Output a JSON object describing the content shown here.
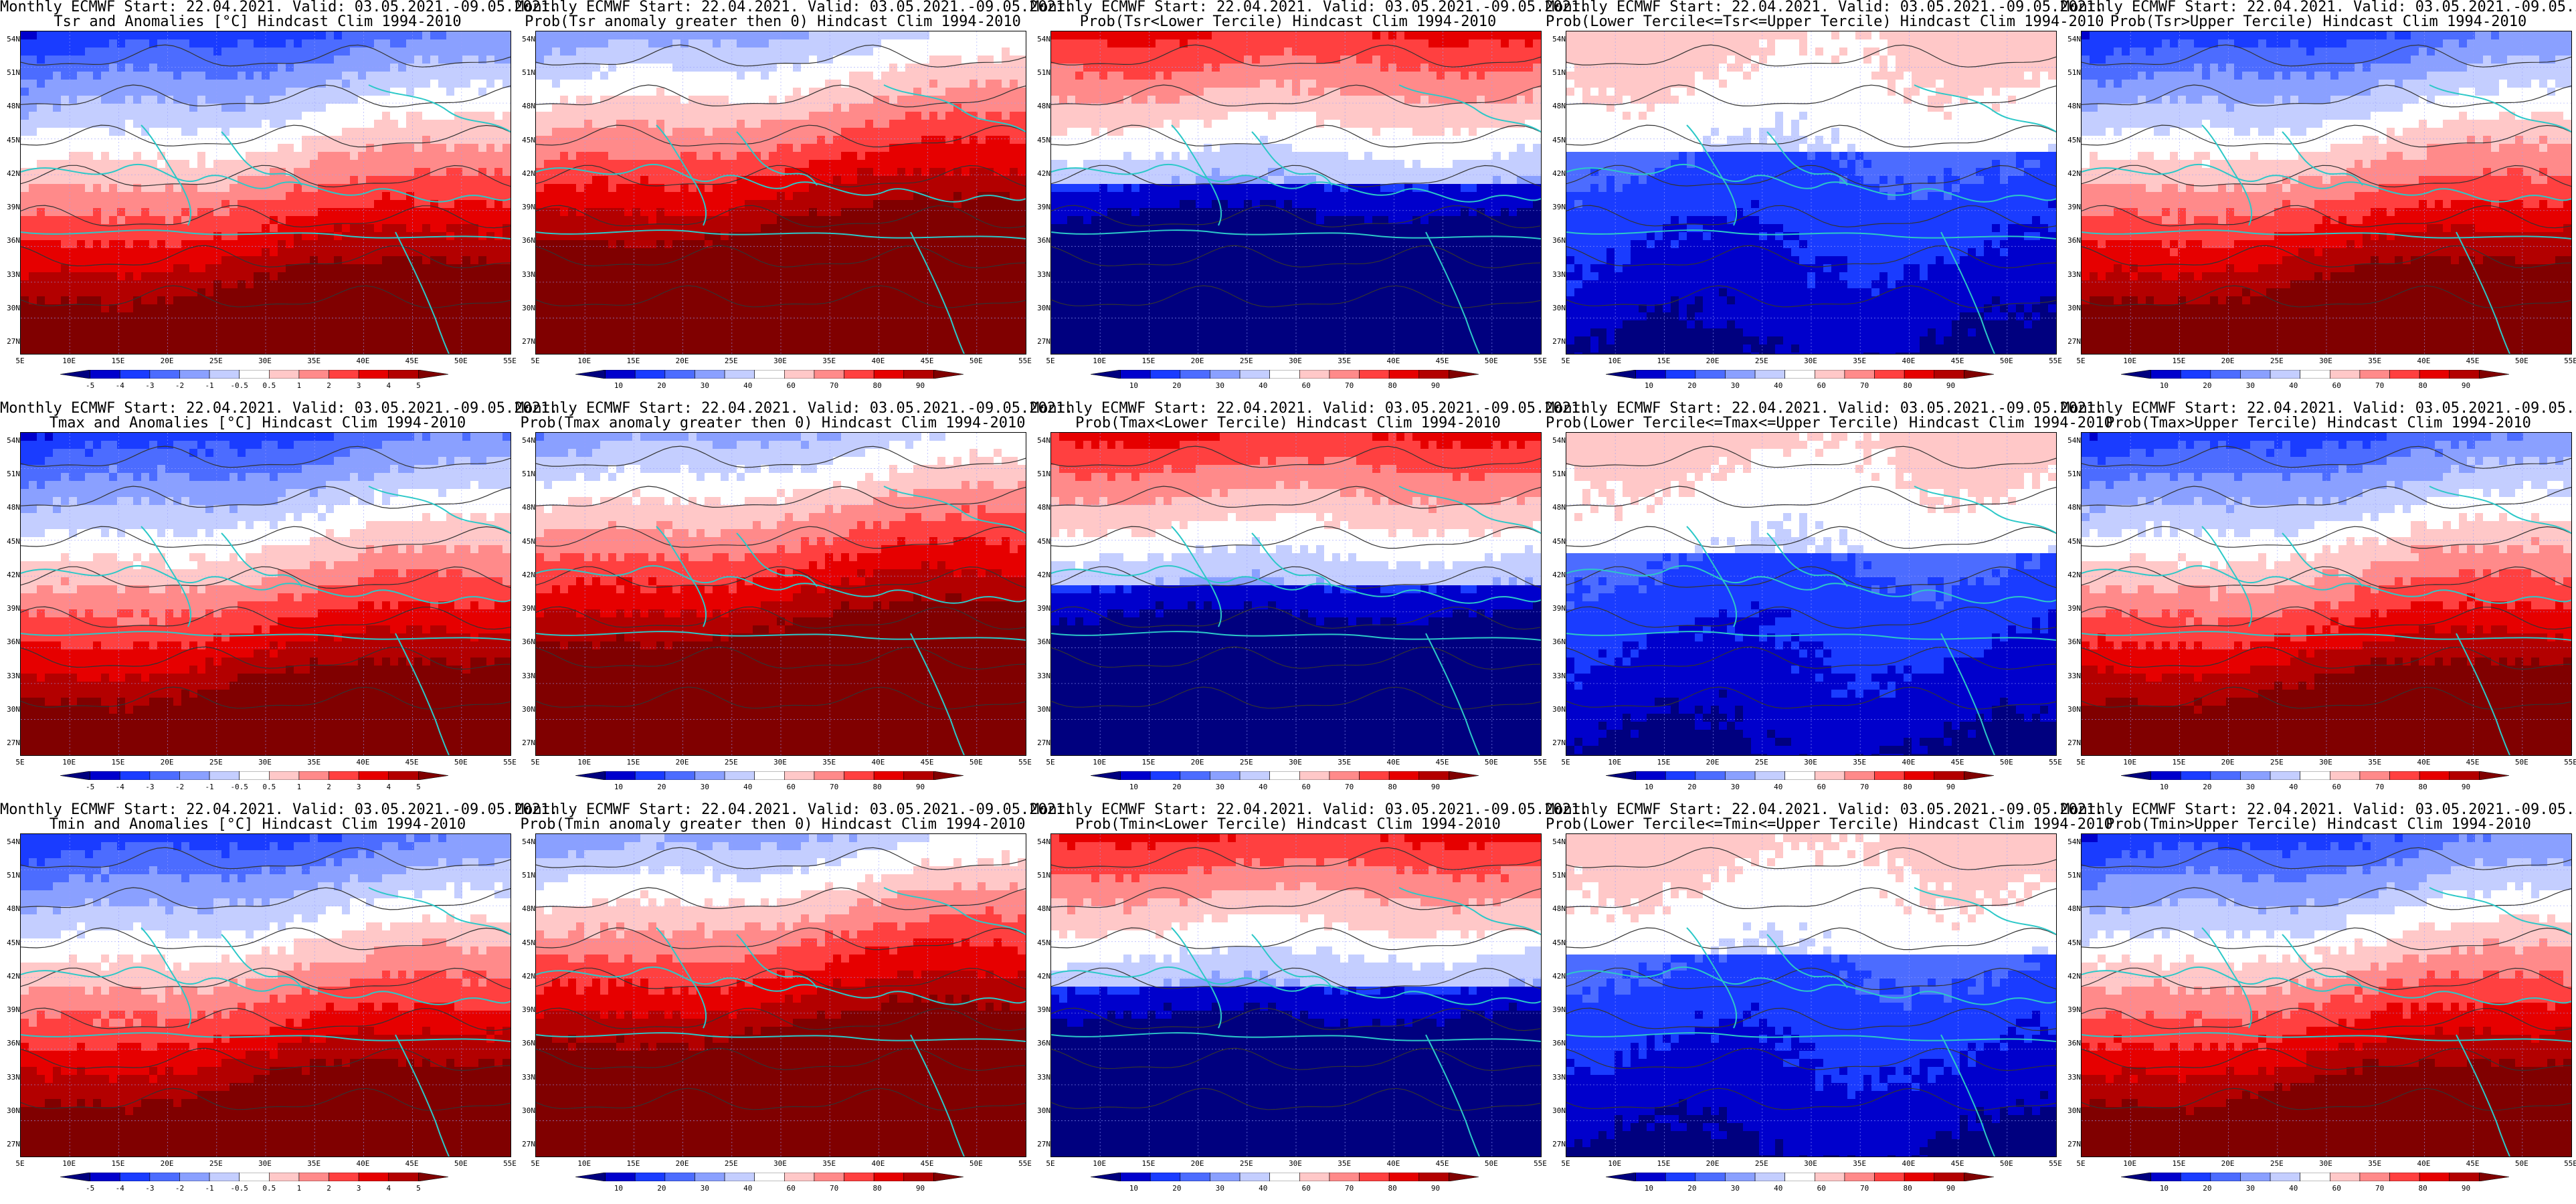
{
  "title_line1": "Monthly ECMWF Start: 22.04.2021. Valid: 03.05.2021.-09.05.2021.",
  "lat_labels": [
    "54N",
    "51N",
    "48N",
    "45N",
    "42N",
    "39N",
    "36N",
    "33N",
    "30N",
    "27N"
  ],
  "lon_labels": [
    "5E",
    "10E",
    "15E",
    "20E",
    "25E",
    "30E",
    "35E",
    "40E",
    "45E",
    "50E",
    "55E"
  ],
  "anomaly_ticks": [
    "-5",
    "-4",
    "-3",
    "-2",
    "-1",
    "-0.5",
    "0.5",
    "1",
    "2",
    "3",
    "4",
    "5"
  ],
  "prob_ticks": [
    "10",
    "20",
    "30",
    "40",
    "60",
    "70",
    "80",
    "90"
  ],
  "colors": {
    "scale": [
      "#00007f",
      "#0000cc",
      "#1a3cff",
      "#4c6cff",
      "#8aa0ff",
      "#c4ceff",
      "#ffffff",
      "#ffc8c8",
      "#ff8a8a",
      "#ff4040",
      "#e60000",
      "#b30000",
      "#800000"
    ],
    "coast": "#2cc8c8",
    "contour": "#333333"
  },
  "rows": [
    {
      "panels": [
        {
          "title2": "Tsr and Anomalies [°C] Hindcast Clim 1994-2010",
          "kind": "anomaly",
          "pattern": "warm-south"
        },
        {
          "title2": "Prob(Tsr anomaly greater then 0) Hindcast Clim 1994-2010",
          "kind": "prob",
          "pattern": "warm-south-strong"
        },
        {
          "title2": "Prob(Tsr<Lower Tercile) Hindcast Clim 1994-2010",
          "kind": "prob",
          "pattern": "cold-south"
        },
        {
          "title2": "Prob(Lower Tercile<=Tsr<=Upper Tercile) Hindcast Clim 1994-2010",
          "kind": "prob",
          "pattern": "mid-blue"
        },
        {
          "title2": "Prob(Tsr>Upper Tercile) Hindcast Clim 1994-2010",
          "kind": "prob",
          "pattern": "warm-south"
        }
      ]
    },
    {
      "panels": [
        {
          "title2": "Tmax and Anomalies [°C] Hindcast Clim 1994-2010",
          "kind": "anomaly",
          "pattern": "warm-south"
        },
        {
          "title2": "Prob(Tmax anomaly greater then 0) Hindcast Clim 1994-2010",
          "kind": "prob",
          "pattern": "warm-south-strong"
        },
        {
          "title2": "Prob(Tmax<Lower Tercile) Hindcast Clim 1994-2010",
          "kind": "prob",
          "pattern": "cold-south"
        },
        {
          "title2": "Prob(Lower Tercile<=Tmax<=Upper Tercile) Hindcast Clim 1994-2010",
          "kind": "prob",
          "pattern": "mid-blue"
        },
        {
          "title2": "Prob(Tmax>Upper Tercile) Hindcast Clim 1994-2010",
          "kind": "prob",
          "pattern": "warm-south"
        }
      ]
    },
    {
      "panels": [
        {
          "title2": "Tmin and Anomalies [°C] Hindcast Clim 1994-2010",
          "kind": "anomaly",
          "pattern": "warm-south"
        },
        {
          "title2": "Prob(Tmin anomaly greater then 0) Hindcast Clim 1994-2010",
          "kind": "prob",
          "pattern": "warm-south-strong"
        },
        {
          "title2": "Prob(Tmin<Lower Tercile) Hindcast Clim 1994-2010",
          "kind": "prob",
          "pattern": "cold-south"
        },
        {
          "title2": "Prob(Lower Tercile<=Tmin<=Upper Tercile) Hindcast Clim 1994-2010",
          "kind": "prob",
          "pattern": "mid-blue"
        },
        {
          "title2": "Prob(Tmin>Upper Tercile) Hindcast Clim 1994-2010",
          "kind": "prob",
          "pattern": "warm-south"
        }
      ]
    }
  ]
}
